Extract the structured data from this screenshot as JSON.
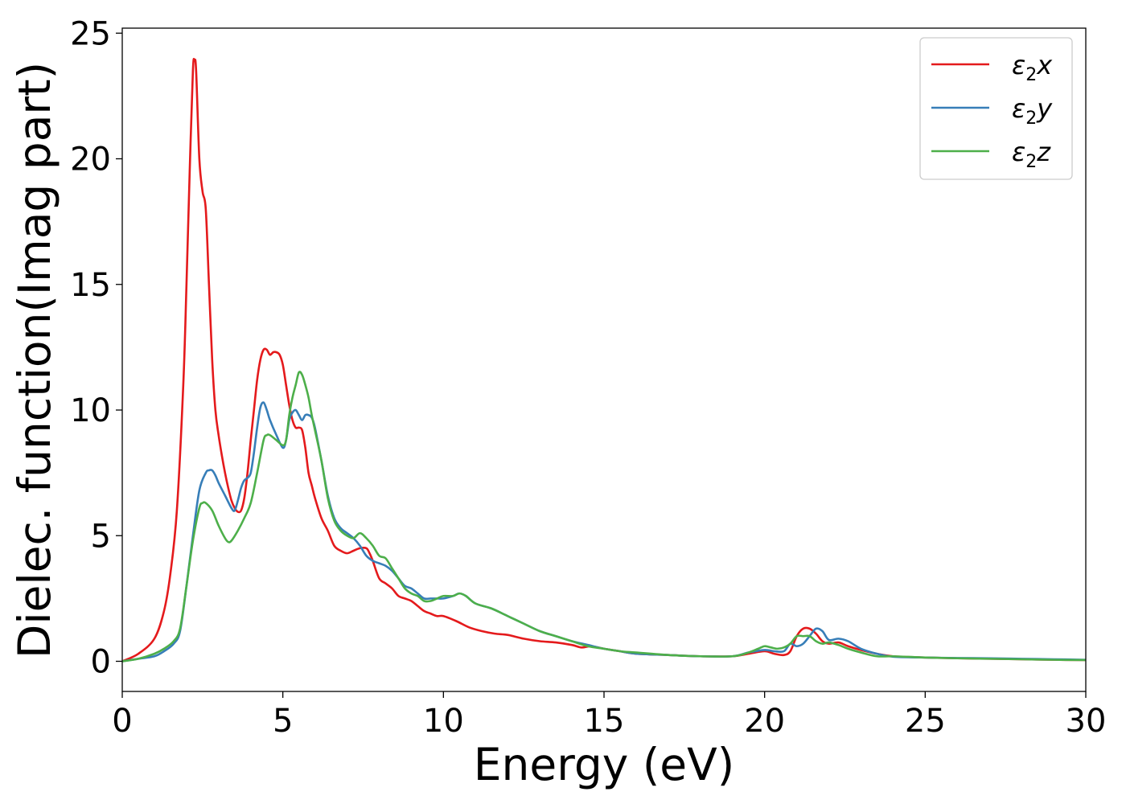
{
  "chart_data": {
    "type": "line",
    "title": "",
    "xlabel": "Energy (eV)",
    "ylabel": "Dielec. function(Imag part)",
    "xlim": [
      0,
      30
    ],
    "ylim": [
      -1.2,
      25.2
    ],
    "xticks": [
      0,
      5,
      10,
      15,
      20,
      25,
      30
    ],
    "yticks": [
      0,
      5,
      10,
      15,
      20,
      25
    ],
    "grid": false,
    "legend_position": "top-right",
    "series": [
      {
        "name": "ε2x",
        "legend": {
          "base": "ε",
          "sub": "2",
          "comp": "x"
        },
        "color": "#e41a1c",
        "x": [
          0,
          0.5,
          1.0,
          1.3,
          1.5,
          1.7,
          1.9,
          2.0,
          2.1,
          2.2,
          2.25,
          2.3,
          2.4,
          2.5,
          2.6,
          2.7,
          2.8,
          2.9,
          3.0,
          3.1,
          3.2,
          3.3,
          3.4,
          3.5,
          3.6,
          3.7,
          3.8,
          3.9,
          4.0,
          4.1,
          4.2,
          4.3,
          4.4,
          4.5,
          4.6,
          4.7,
          4.8,
          4.9,
          5.0,
          5.1,
          5.2,
          5.3,
          5.4,
          5.5,
          5.6,
          5.7,
          5.8,
          5.9,
          6.0,
          6.2,
          6.4,
          6.6,
          6.8,
          7.0,
          7.2,
          7.4,
          7.6,
          7.7,
          7.8,
          8.0,
          8.2,
          8.4,
          8.6,
          8.8,
          9.0,
          9.2,
          9.4,
          9.6,
          9.8,
          10.0,
          10.4,
          10.8,
          11.2,
          11.6,
          12.0,
          12.5,
          13.0,
          13.5,
          14.0,
          14.3,
          14.6,
          15.0,
          15.5,
          16.0,
          17.0,
          18.0,
          19.0,
          19.5,
          20.0,
          20.3,
          20.6,
          20.8,
          21.0,
          21.2,
          21.4,
          21.6,
          21.8,
          22.0,
          22.3,
          22.6,
          23.0,
          23.5,
          24.0,
          25.0,
          26.0,
          27.0,
          28.0,
          29.0,
          30.0
        ],
        "y": [
          0,
          0.3,
          0.9,
          2.0,
          3.5,
          6.0,
          11.0,
          15.0,
          19.5,
          23.5,
          23.9,
          23.5,
          20.0,
          18.7,
          18.0,
          15.0,
          12.0,
          10.0,
          9.0,
          8.2,
          7.5,
          6.9,
          6.4,
          6.1,
          5.95,
          6.0,
          6.5,
          7.5,
          8.8,
          10.0,
          11.2,
          12.0,
          12.4,
          12.4,
          12.2,
          12.3,
          12.3,
          12.2,
          11.8,
          11.0,
          10.2,
          9.6,
          9.3,
          9.3,
          9.2,
          8.5,
          7.5,
          7.0,
          6.5,
          5.7,
          5.2,
          4.6,
          4.4,
          4.3,
          4.4,
          4.5,
          4.5,
          4.3,
          4.0,
          3.3,
          3.1,
          2.9,
          2.6,
          2.5,
          2.4,
          2.2,
          2.0,
          1.9,
          1.8,
          1.8,
          1.6,
          1.35,
          1.2,
          1.1,
          1.05,
          0.9,
          0.8,
          0.75,
          0.65,
          0.55,
          0.6,
          0.5,
          0.4,
          0.3,
          0.25,
          0.2,
          0.2,
          0.3,
          0.4,
          0.3,
          0.25,
          0.4,
          1.0,
          1.3,
          1.3,
          1.1,
          0.8,
          0.7,
          0.75,
          0.6,
          0.45,
          0.3,
          0.2,
          0.15,
          0.12,
          0.1,
          0.08,
          0.06,
          0.05
        ]
      },
      {
        "name": "ε2y",
        "legend": {
          "base": "ε",
          "sub": "2",
          "comp": "y"
        },
        "color": "#377eb8",
        "x": [
          0,
          0.5,
          1.0,
          1.3,
          1.6,
          1.8,
          2.0,
          2.2,
          2.4,
          2.6,
          2.7,
          2.8,
          2.9,
          3.0,
          3.2,
          3.4,
          3.5,
          3.6,
          3.7,
          3.8,
          3.9,
          4.0,
          4.1,
          4.2,
          4.3,
          4.4,
          4.5,
          4.6,
          4.8,
          5.0,
          5.1,
          5.2,
          5.3,
          5.4,
          5.5,
          5.6,
          5.7,
          5.8,
          5.9,
          6.0,
          6.2,
          6.4,
          6.6,
          6.8,
          7.0,
          7.2,
          7.4,
          7.6,
          7.8,
          8.0,
          8.2,
          8.4,
          8.6,
          8.8,
          9.0,
          9.2,
          9.4,
          9.6,
          9.8,
          10.0,
          10.3,
          10.5,
          10.7,
          11.0,
          11.5,
          12.0,
          12.5,
          13.0,
          13.5,
          14.0,
          14.5,
          15.0,
          15.5,
          16.0,
          17.0,
          18.0,
          19.0,
          19.5,
          20.0,
          20.3,
          20.6,
          20.8,
          21.0,
          21.2,
          21.4,
          21.6,
          21.8,
          22.0,
          22.3,
          22.6,
          23.0,
          23.5,
          24.0,
          25.0,
          26.0,
          27.0,
          28.0,
          29.0,
          30.0
        ],
        "y": [
          0,
          0.1,
          0.2,
          0.4,
          0.7,
          1.2,
          3.0,
          5.0,
          6.8,
          7.5,
          7.6,
          7.6,
          7.4,
          7.1,
          6.6,
          6.1,
          6.0,
          6.4,
          6.9,
          7.2,
          7.3,
          7.5,
          8.3,
          9.3,
          10.1,
          10.3,
          10.0,
          9.6,
          9.0,
          8.5,
          8.8,
          9.6,
          9.9,
          10.0,
          9.8,
          9.6,
          9.8,
          9.8,
          9.7,
          9.3,
          8.0,
          6.6,
          5.7,
          5.3,
          5.1,
          4.9,
          4.6,
          4.2,
          4.0,
          3.9,
          3.8,
          3.6,
          3.3,
          3.0,
          2.9,
          2.7,
          2.5,
          2.5,
          2.5,
          2.5,
          2.6,
          2.7,
          2.6,
          2.3,
          2.1,
          1.8,
          1.5,
          1.2,
          1.0,
          0.8,
          0.65,
          0.5,
          0.4,
          0.3,
          0.25,
          0.2,
          0.2,
          0.35,
          0.45,
          0.4,
          0.4,
          0.7,
          0.6,
          0.7,
          1.0,
          1.3,
          1.2,
          0.85,
          0.9,
          0.8,
          0.5,
          0.3,
          0.18,
          0.15,
          0.13,
          0.12,
          0.1,
          0.08,
          0.06
        ]
      },
      {
        "name": "ε2z",
        "legend": {
          "base": "ε",
          "sub": "2",
          "comp": "z"
        },
        "color": "#4daf4a",
        "x": [
          0,
          0.5,
          1.0,
          1.3,
          1.6,
          1.8,
          2.0,
          2.2,
          2.4,
          2.5,
          2.6,
          2.8,
          3.0,
          3.2,
          3.3,
          3.4,
          3.6,
          3.8,
          4.0,
          4.2,
          4.4,
          4.5,
          4.6,
          4.8,
          5.0,
          5.1,
          5.2,
          5.3,
          5.4,
          5.5,
          5.6,
          5.7,
          5.8,
          5.9,
          6.0,
          6.2,
          6.4,
          6.6,
          6.8,
          7.0,
          7.2,
          7.4,
          7.6,
          7.8,
          8.0,
          8.2,
          8.4,
          8.6,
          8.8,
          9.0,
          9.2,
          9.4,
          9.6,
          9.8,
          10.0,
          10.3,
          10.5,
          10.7,
          11.0,
          11.5,
          12.0,
          12.5,
          13.0,
          13.5,
          14.0,
          14.5,
          15.0,
          15.5,
          16.0,
          17.0,
          18.0,
          19.0,
          19.5,
          19.8,
          20.0,
          20.2,
          20.4,
          20.6,
          20.8,
          21.0,
          21.2,
          21.4,
          21.6,
          21.8,
          22.0,
          22.3,
          22.6,
          23.0,
          23.5,
          24.0,
          25.0,
          26.0,
          27.0,
          28.0,
          29.0,
          30.0
        ],
        "y": [
          0,
          0.1,
          0.3,
          0.5,
          0.8,
          1.3,
          3.0,
          4.8,
          6.1,
          6.3,
          6.3,
          6.0,
          5.4,
          4.9,
          4.75,
          4.8,
          5.2,
          5.7,
          6.3,
          7.5,
          8.8,
          9.0,
          9.0,
          8.8,
          8.6,
          8.8,
          9.8,
          10.5,
          11.0,
          11.5,
          11.4,
          11.0,
          10.5,
          9.8,
          9.2,
          8.0,
          6.5,
          5.6,
          5.2,
          5.0,
          4.9,
          5.1,
          4.9,
          4.6,
          4.2,
          4.1,
          3.7,
          3.3,
          2.9,
          2.7,
          2.6,
          2.4,
          2.4,
          2.5,
          2.6,
          2.6,
          2.7,
          2.6,
          2.3,
          2.1,
          1.8,
          1.5,
          1.2,
          1.0,
          0.8,
          0.6,
          0.5,
          0.4,
          0.35,
          0.25,
          0.2,
          0.2,
          0.35,
          0.5,
          0.6,
          0.55,
          0.5,
          0.55,
          0.7,
          1.0,
          1.0,
          1.0,
          0.8,
          0.7,
          0.75,
          0.65,
          0.5,
          0.35,
          0.2,
          0.2,
          0.15,
          0.12,
          0.1,
          0.08,
          0.06,
          0.05
        ]
      }
    ]
  }
}
